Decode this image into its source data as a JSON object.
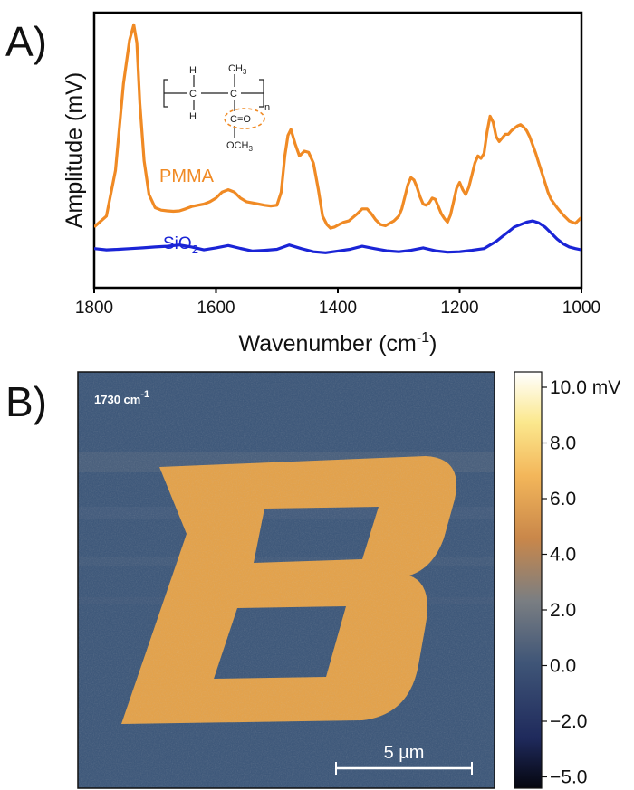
{
  "panel_a": {
    "letter": "A)",
    "molecule": {
      "h_top": "H",
      "h_bottom": "H",
      "methyl": "CH",
      "methyl_sub": "3",
      "carbonyl": "C=O",
      "methoxy": "OCH",
      "methoxy_sub": "3",
      "repeat": "n"
    },
    "label_pmma": "PMMA",
    "label_sio2_main": "SiO",
    "label_sio2_sub": "2"
  },
  "panel_b": {
    "letter": "B)",
    "map_label_main": "1730 cm",
    "map_label_sup": "-1",
    "scalebar_label": "5 µm"
  },
  "chart_data": [
    {
      "type": "line",
      "xlabel_main": "Wavenumber (cm",
      "xlabel_sup": "-1",
      "xlabel_end": ")",
      "ylabel": "Amplitude (mV)",
      "xlim": [
        1800,
        1000
      ],
      "x_reversed": true,
      "ylim": [
        0,
        10
      ],
      "xticks": [
        1800,
        1600,
        1400,
        1200,
        1000
      ],
      "y_ticks_shown": false,
      "grid": false,
      "series": [
        {
          "name": "PMMA",
          "color": "#F08A24",
          "x": [
            1800,
            1780,
            1765,
            1752,
            1742,
            1735,
            1730,
            1725,
            1718,
            1710,
            1700,
            1690,
            1680,
            1670,
            1660,
            1650,
            1640,
            1630,
            1620,
            1610,
            1600,
            1590,
            1580,
            1570,
            1560,
            1550,
            1540,
            1530,
            1520,
            1510,
            1500,
            1493,
            1487,
            1482,
            1477,
            1470,
            1463,
            1455,
            1448,
            1440,
            1432,
            1425,
            1418,
            1412,
            1405,
            1398,
            1390,
            1382,
            1375,
            1368,
            1360,
            1352,
            1345,
            1338,
            1330,
            1322,
            1315,
            1308,
            1300,
            1295,
            1290,
            1285,
            1280,
            1275,
            1270,
            1265,
            1260,
            1255,
            1250,
            1245,
            1240,
            1235,
            1230,
            1225,
            1220,
            1215,
            1210,
            1205,
            1200,
            1195,
            1190,
            1185,
            1180,
            1175,
            1170,
            1165,
            1160,
            1155,
            1150,
            1145,
            1140,
            1135,
            1130,
            1125,
            1120,
            1115,
            1110,
            1105,
            1100,
            1095,
            1090,
            1085,
            1080,
            1075,
            1070,
            1065,
            1060,
            1055,
            1050,
            1040,
            1030,
            1020,
            1010,
            1000
          ],
          "y": [
            1.85,
            2.3,
            4.2,
            7.8,
            9.6,
            10.25,
            9.5,
            7.0,
            4.6,
            3.2,
            2.65,
            2.55,
            2.52,
            2.5,
            2.52,
            2.6,
            2.7,
            2.75,
            2.8,
            2.9,
            3.05,
            3.3,
            3.4,
            3.3,
            3.05,
            2.9,
            2.85,
            2.8,
            2.75,
            2.72,
            2.75,
            3.3,
            4.8,
            5.65,
            5.9,
            5.3,
            4.8,
            5.0,
            4.95,
            4.5,
            3.4,
            2.3,
            1.95,
            1.8,
            1.85,
            1.95,
            2.05,
            2.1,
            2.25,
            2.4,
            2.6,
            2.6,
            2.4,
            2.15,
            1.95,
            1.9,
            2.0,
            2.1,
            2.3,
            2.6,
            3.1,
            3.6,
            3.9,
            3.8,
            3.5,
            3.1,
            2.8,
            2.75,
            2.85,
            3.05,
            3.0,
            2.7,
            2.4,
            2.2,
            2.05,
            2.35,
            2.9,
            3.45,
            3.7,
            3.4,
            3.2,
            3.5,
            4.0,
            4.5,
            4.8,
            4.7,
            4.9,
            5.8,
            6.45,
            6.2,
            5.6,
            5.4,
            5.55,
            5.7,
            5.7,
            5.85,
            5.95,
            6.05,
            6.1,
            6.0,
            5.85,
            5.6,
            5.25,
            4.9,
            4.5,
            4.1,
            3.7,
            3.3,
            3.0,
            2.65,
            2.35,
            2.1,
            2.0,
            2.25
          ]
        },
        {
          "name": "SiO2",
          "color": "#1A24D6",
          "x": [
            1800,
            1780,
            1760,
            1740,
            1720,
            1700,
            1680,
            1660,
            1640,
            1620,
            1600,
            1580,
            1560,
            1540,
            1520,
            1500,
            1480,
            1460,
            1440,
            1420,
            1400,
            1380,
            1360,
            1340,
            1320,
            1300,
            1280,
            1260,
            1240,
            1220,
            1200,
            1180,
            1160,
            1150,
            1140,
            1130,
            1120,
            1110,
            1100,
            1090,
            1080,
            1070,
            1060,
            1050,
            1040,
            1030,
            1020,
            1010,
            1000
          ],
          "y": [
            0.95,
            0.9,
            0.92,
            0.95,
            0.98,
            1.02,
            1.05,
            1.1,
            1.02,
            0.9,
            0.98,
            1.08,
            0.96,
            0.85,
            0.88,
            0.92,
            1.1,
            0.95,
            0.82,
            0.78,
            0.85,
            0.92,
            1.05,
            0.95,
            0.86,
            0.82,
            0.88,
            0.98,
            0.86,
            0.8,
            0.82,
            0.88,
            0.95,
            1.1,
            1.25,
            1.45,
            1.65,
            1.85,
            1.95,
            2.05,
            2.1,
            2.02,
            1.85,
            1.6,
            1.35,
            1.15,
            1.02,
            0.95,
            0.9
          ]
        }
      ]
    },
    {
      "type": "heatmap",
      "colorbar_unit": "mV",
      "colorbar_ticks": [
        10.0,
        8.0,
        6.0,
        4.0,
        2.0,
        0.0,
        -2.0,
        -5.0
      ],
      "colorbar_tick_labels": [
        "10.0 mV",
        "8.0",
        "6.0",
        "4.0",
        "2.0",
        "0.0",
        "−2.0",
        "−5.0"
      ],
      "colorbar_range": [
        -5.0,
        10.0
      ],
      "colormap": [
        "#05060F",
        "#1F2A5C",
        "#3F5577",
        "#7A7E82",
        "#C9874A",
        "#F3B65A",
        "#FBE88E",
        "#FFFFFF"
      ],
      "background_color": "#3E587A",
      "feature_color": "#E3A24B"
    }
  ]
}
